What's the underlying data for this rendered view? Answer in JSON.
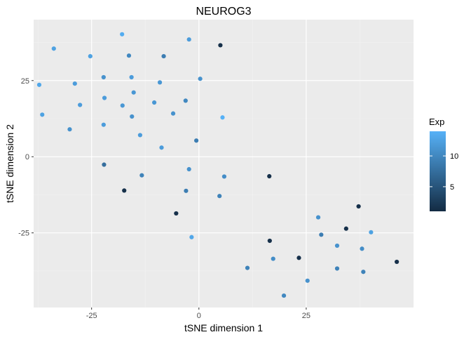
{
  "chart_data": {
    "type": "scatter",
    "title": "NEUROG3",
    "xlabel": "tSNE dimension 1",
    "ylabel": "tSNE dimension 2",
    "xlim": [
      -38.5,
      50
    ],
    "ylim": [
      -49.5,
      45
    ],
    "x_ticks": [
      -25,
      0,
      25
    ],
    "y_ticks": [
      -25,
      0,
      25
    ],
    "x_tick_labels": [
      "-25",
      "0",
      "25"
    ],
    "y_tick_labels": [
      "-25",
      "0",
      "25"
    ],
    "grid": true,
    "legend": {
      "title": "Exp",
      "position": "right",
      "range": [
        1,
        14
      ],
      "ticks": [
        5,
        10
      ],
      "tick_labels": [
        "5",
        "10"
      ],
      "color_low": "#132B43",
      "color_high": "#56B1F7"
    },
    "colors": {
      "panel": "#ebebeb",
      "grid_major": "#ffffff",
      "grid_minor": "#f2f2f2"
    },
    "points": [
      {
        "x": -17.9,
        "y": 40.2,
        "exp": 13.5
      },
      {
        "x": -2.3,
        "y": 38.5,
        "exp": 12
      },
      {
        "x": 5.0,
        "y": 36.6,
        "exp": 1.5
      },
      {
        "x": -33.8,
        "y": 35.5,
        "exp": 12.5
      },
      {
        "x": -25.3,
        "y": 33.0,
        "exp": 12.5
      },
      {
        "x": -16.3,
        "y": 33.2,
        "exp": 10
      },
      {
        "x": -8.2,
        "y": 33.0,
        "exp": 9
      },
      {
        "x": -22.2,
        "y": 26.1,
        "exp": 11
      },
      {
        "x": -15.7,
        "y": 26.1,
        "exp": 12
      },
      {
        "x": 0.3,
        "y": 25.6,
        "exp": 11
      },
      {
        "x": -28.9,
        "y": 24.0,
        "exp": 12
      },
      {
        "x": -37.2,
        "y": 23.6,
        "exp": 13
      },
      {
        "x": -9.1,
        "y": 24.4,
        "exp": 11.5
      },
      {
        "x": -15.2,
        "y": 21.1,
        "exp": 11.5
      },
      {
        "x": -22.0,
        "y": 19.3,
        "exp": 12
      },
      {
        "x": -3.1,
        "y": 18.4,
        "exp": 10
      },
      {
        "x": -10.4,
        "y": 17.8,
        "exp": 11.5
      },
      {
        "x": -27.7,
        "y": 17.0,
        "exp": 12
      },
      {
        "x": -17.8,
        "y": 16.8,
        "exp": 11.5
      },
      {
        "x": -6.0,
        "y": 14.2,
        "exp": 11
      },
      {
        "x": -36.5,
        "y": 13.8,
        "exp": 12.5
      },
      {
        "x": -15.6,
        "y": 13.2,
        "exp": 11
      },
      {
        "x": 5.5,
        "y": 12.9,
        "exp": 14
      },
      {
        "x": -22.2,
        "y": 10.5,
        "exp": 12
      },
      {
        "x": -30.1,
        "y": 9.0,
        "exp": 11
      },
      {
        "x": -13.7,
        "y": 7.1,
        "exp": 12
      },
      {
        "x": -0.6,
        "y": 5.3,
        "exp": 9
      },
      {
        "x": -8.7,
        "y": 3.0,
        "exp": 12
      },
      {
        "x": -22.1,
        "y": -2.6,
        "exp": 7.5
      },
      {
        "x": -2.3,
        "y": -4.1,
        "exp": 11
      },
      {
        "x": -13.3,
        "y": -6.1,
        "exp": 9.5
      },
      {
        "x": 5.9,
        "y": -6.5,
        "exp": 10.5
      },
      {
        "x": 16.4,
        "y": -6.4,
        "exp": 1.5
      },
      {
        "x": -17.4,
        "y": -11.1,
        "exp": 1.5
      },
      {
        "x": -3.0,
        "y": -11.2,
        "exp": 9
      },
      {
        "x": 4.8,
        "y": -12.9,
        "exp": 9.5
      },
      {
        "x": 37.2,
        "y": -16.3,
        "exp": 1.5
      },
      {
        "x": -5.3,
        "y": -18.6,
        "exp": 1.5
      },
      {
        "x": 27.8,
        "y": -19.9,
        "exp": 11
      },
      {
        "x": 34.3,
        "y": -23.6,
        "exp": 1.5
      },
      {
        "x": 40.1,
        "y": -24.8,
        "exp": 12.5
      },
      {
        "x": 28.5,
        "y": -25.6,
        "exp": 9
      },
      {
        "x": -1.7,
        "y": -26.4,
        "exp": 13
      },
      {
        "x": 16.5,
        "y": -27.6,
        "exp": 1.5
      },
      {
        "x": 32.2,
        "y": -29.2,
        "exp": 11
      },
      {
        "x": 38.0,
        "y": -30.2,
        "exp": 10.5
      },
      {
        "x": 23.3,
        "y": -33.2,
        "exp": 1.5
      },
      {
        "x": 17.3,
        "y": -33.5,
        "exp": 10.5
      },
      {
        "x": 46.1,
        "y": -34.5,
        "exp": 1.5
      },
      {
        "x": 11.3,
        "y": -36.5,
        "exp": 9.5
      },
      {
        "x": 32.2,
        "y": -36.7,
        "exp": 9.5
      },
      {
        "x": 38.3,
        "y": -37.8,
        "exp": 9.5
      },
      {
        "x": 25.3,
        "y": -40.7,
        "exp": 11
      },
      {
        "x": 19.8,
        "y": -45.6,
        "exp": 10
      }
    ]
  }
}
